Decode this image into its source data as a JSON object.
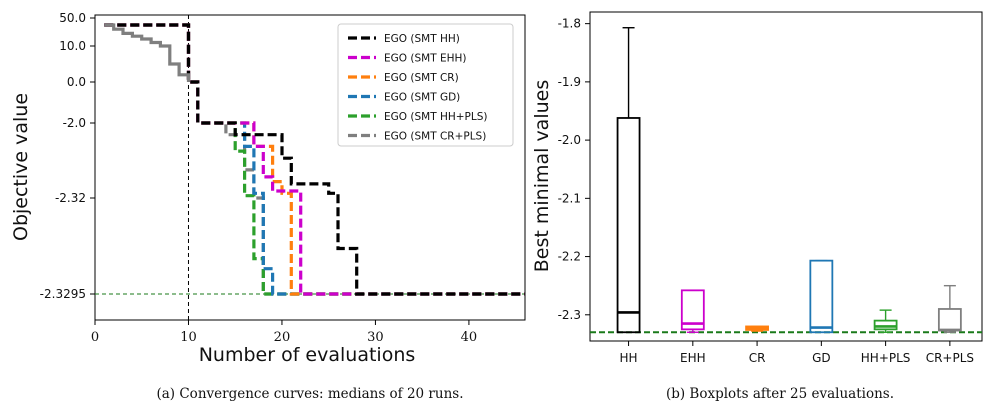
{
  "chart_data": [
    {
      "type": "line",
      "panel": "a",
      "caption": "(a) Convergence curves: medians of 20 runs.",
      "xlabel": "Number of evaluations",
      "ylabel": "Objective value",
      "xlim": [
        0,
        46
      ],
      "xticks": [
        0,
        10,
        20,
        30,
        40
      ],
      "yticks": [
        "50.0",
        "10.0",
        "0.0",
        "-2.0",
        "-2.32",
        "-2.3295"
      ],
      "ylevels": [
        50.0,
        10.0,
        0.0,
        -2.0,
        -2.32,
        -2.3295
      ],
      "vline_x": 10,
      "hline_label": "-2.3295",
      "legend_position": "top-right",
      "series": [
        {
          "name": "EGO (SMT HH)",
          "color": "#000000",
          "x": [
            1,
            10,
            11,
            15,
            20,
            21,
            25,
            26,
            28,
            46
          ],
          "y": [
            40.0,
            0.0,
            -2.0,
            -2.05,
            -2.15,
            -2.26,
            -2.3,
            -2.325,
            -2.3295,
            -2.3295
          ]
        },
        {
          "name": "EGO (SMT EHH)",
          "color": "#cc00cc",
          "x": [
            1,
            10,
            11,
            17,
            18,
            19,
            22,
            46
          ],
          "y": [
            40.0,
            0.0,
            -2.0,
            -2.1,
            -2.23,
            -2.29,
            -2.3295,
            -2.3295
          ]
        },
        {
          "name": "EGO (SMT CR)",
          "color": "#ff7f0e",
          "x": [
            1,
            10,
            11,
            17,
            19,
            20,
            21,
            46
          ],
          "y": [
            40.0,
            0.0,
            -2.0,
            -2.1,
            -2.25,
            -2.3,
            -2.3295,
            -2.3295
          ]
        },
        {
          "name": "EGO (SMT GD)",
          "color": "#1f77b4",
          "x": [
            1,
            10,
            11,
            16,
            17,
            18,
            19,
            46
          ],
          "y": [
            40.0,
            0.0,
            -2.0,
            -2.1,
            -2.3,
            -2.327,
            -2.3295,
            -2.3295
          ]
        },
        {
          "name": "EGO (SMT HH+PLS)",
          "color": "#2ca02c",
          "x": [
            1,
            10,
            11,
            15,
            16,
            17,
            18,
            46
          ],
          "y": [
            40.0,
            0.0,
            -2.0,
            -2.12,
            -2.31,
            -2.326,
            -2.3295,
            -2.3295
          ]
        },
        {
          "name": "EGO (SMT CR+PLS)",
          "color": "#7f7f7f",
          "x": [
            1,
            10,
            11,
            14,
            16,
            17,
            18,
            46
          ],
          "y": [
            40.0,
            0.0,
            -2.0,
            -2.05,
            -2.2,
            -2.32,
            -2.3295,
            -2.3295
          ]
        }
      ]
    },
    {
      "type": "box",
      "panel": "b",
      "caption": "(b) Boxplots after 25 evaluations.",
      "ylabel": "Best minimal values",
      "ylim": [
        -2.345,
        -1.78
      ],
      "yticks": [
        "-1.8",
        "-1.9",
        "-2.0",
        "-2.1",
        "-2.2",
        "-2.3"
      ],
      "reference_line": -2.33,
      "categories": [
        "HH",
        "EHH",
        "CR",
        "GD",
        "HH+PLS",
        "CR+PLS"
      ],
      "boxes": [
        {
          "label": "HH",
          "color": "#000000",
          "whisker_low": -2.33,
          "q1": -2.33,
          "median": -2.296,
          "q3": -1.962,
          "whisker_high": -1.807
        },
        {
          "label": "EHH",
          "color": "#cc00cc",
          "whisker_low": -2.33,
          "q1": -2.325,
          "median": -2.315,
          "q3": -2.258,
          "whisker_high": -2.258
        },
        {
          "label": "CR",
          "color": "#ff7f0e",
          "whisker_low": -2.328,
          "q1": -2.326,
          "median": -2.323,
          "q3": -2.32,
          "whisker_high": -2.32
        },
        {
          "label": "GD",
          "color": "#1f77b4",
          "whisker_low": -2.33,
          "q1": -2.33,
          "median": -2.322,
          "q3": -2.207,
          "whisker_high": -2.207
        },
        {
          "label": "HH+PLS",
          "color": "#2ca02c",
          "whisker_low": -2.33,
          "q1": -2.325,
          "median": -2.32,
          "q3": -2.31,
          "whisker_high": -2.292
        },
        {
          "label": "CR+PLS",
          "color": "#7f7f7f",
          "whisker_low": -2.33,
          "q1": -2.327,
          "median": -2.326,
          "q3": -2.29,
          "whisker_high": -2.25
        }
      ]
    }
  ]
}
